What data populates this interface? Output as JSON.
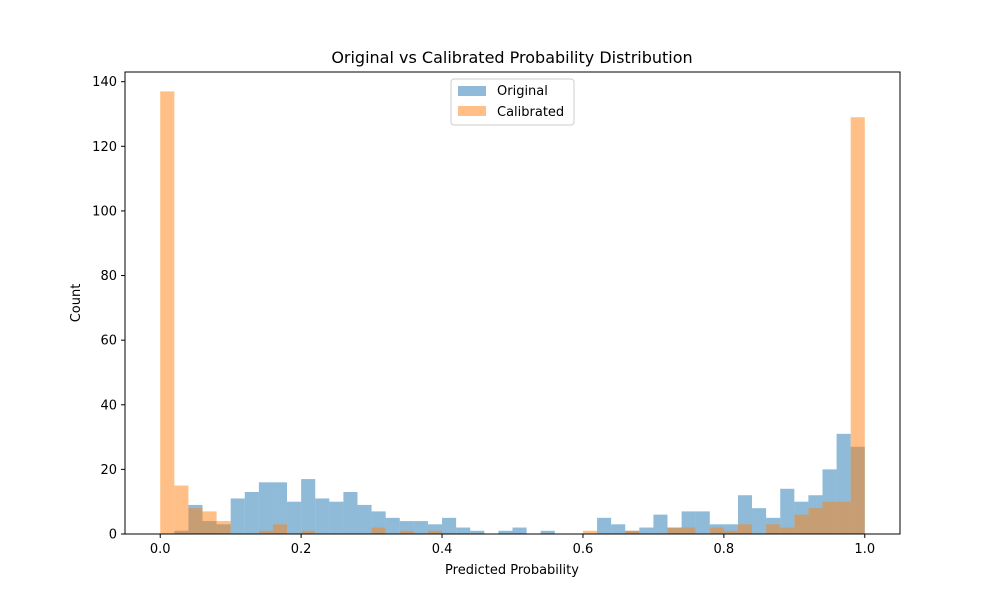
{
  "chart_data": {
    "type": "bar",
    "title": "Original vs Calibrated Probability Distribution",
    "xlabel": "Predicted Probability",
    "ylabel": "Count",
    "xlim": [
      -0.05,
      1.05
    ],
    "ylim": [
      0,
      143
    ],
    "grid": false,
    "legend_position": "top-center",
    "x_ticks": [
      0.0,
      0.2,
      0.4,
      0.6,
      0.8,
      1.0
    ],
    "x_tick_labels": [
      "0.0",
      "0.2",
      "0.4",
      "0.6",
      "0.8",
      "1.0"
    ],
    "y_ticks": [
      0,
      20,
      40,
      60,
      80,
      100,
      120,
      140
    ],
    "y_tick_labels": [
      "0",
      "20",
      "40",
      "60",
      "80",
      "100",
      "120",
      "140"
    ],
    "bin_width": 0.02,
    "bin_starts": [
      0.0,
      0.02,
      0.04,
      0.06,
      0.08,
      0.1,
      0.12,
      0.14,
      0.16,
      0.18,
      0.2,
      0.22,
      0.24,
      0.26,
      0.28,
      0.3,
      0.32,
      0.34,
      0.36,
      0.38,
      0.4,
      0.42,
      0.44,
      0.46,
      0.48,
      0.5,
      0.52,
      0.54,
      0.56,
      0.58,
      0.6,
      0.62,
      0.64,
      0.66,
      0.68,
      0.7,
      0.72,
      0.74,
      0.76,
      0.78,
      0.8,
      0.82,
      0.84,
      0.86,
      0.88,
      0.9,
      0.92,
      0.94,
      0.96,
      0.98
    ],
    "series": [
      {
        "name": "Original",
        "color": "#1f77b4",
        "opacity": 0.5,
        "values": [
          0,
          1,
          9,
          4,
          3,
          11,
          13,
          16,
          16,
          10,
          17,
          11,
          10,
          13,
          9,
          7,
          5,
          4,
          4,
          3,
          5,
          2,
          1,
          0,
          1,
          2,
          0,
          1,
          0,
          0,
          0,
          5,
          3,
          1,
          2,
          6,
          2,
          7,
          7,
          3,
          3,
          12,
          8,
          5,
          14,
          10,
          12,
          20,
          31,
          27
        ]
      },
      {
        "name": "Calibrated",
        "color": "#ff7f0e",
        "opacity": 0.5,
        "values": [
          137,
          15,
          8,
          7,
          4,
          0,
          0,
          1,
          3,
          0,
          1,
          0,
          0,
          0,
          0,
          2,
          0,
          1,
          0,
          1,
          0,
          0,
          0,
          0,
          0,
          0,
          0,
          0,
          0,
          0,
          1,
          0,
          0,
          1,
          0,
          0,
          2,
          2,
          0,
          2,
          1,
          3,
          0,
          3,
          2,
          6,
          8,
          10,
          10,
          129
        ]
      }
    ]
  }
}
